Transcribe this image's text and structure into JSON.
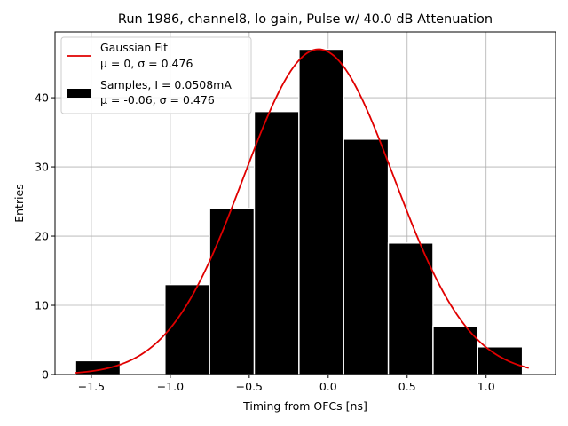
{
  "colors": {
    "background": "#ffffff",
    "bar_fill": "#000000",
    "bar_edge": "#ffffff",
    "fit_line": "#e00000",
    "grid": "#b0b0b0",
    "axis": "#000000"
  },
  "chart_data": {
    "type": "bar",
    "title": "Run 1986, channel8, lo gain, Pulse w/ 40.0 dB Attenuation",
    "xlabel": "Timing from OFCs [ns]",
    "ylabel": "Entries",
    "xlim": [
      -1.73,
      1.44
    ],
    "ylim": [
      0,
      49.5
    ],
    "grid": true,
    "xticks": [
      {
        "value": -1.5,
        "label": "−1.5"
      },
      {
        "value": -1.0,
        "label": "−1.0"
      },
      {
        "value": -0.5,
        "label": "−0.5"
      },
      {
        "value": 0.0,
        "label": "0.0"
      },
      {
        "value": 0.5,
        "label": "0.5"
      },
      {
        "value": 1.0,
        "label": "1.0"
      }
    ],
    "yticks": [
      {
        "value": 0,
        "label": "0"
      },
      {
        "value": 10,
        "label": "10"
      },
      {
        "value": 20,
        "label": "20"
      },
      {
        "value": 30,
        "label": "30"
      },
      {
        "value": 40,
        "label": "40"
      }
    ],
    "bins": [
      {
        "x0": -1.6,
        "x1": -1.317,
        "count": 2
      },
      {
        "x0": -1.317,
        "x1": -1.034,
        "count": 0
      },
      {
        "x0": -1.034,
        "x1": -0.751,
        "count": 13
      },
      {
        "x0": -0.751,
        "x1": -0.468,
        "count": 24
      },
      {
        "x0": -0.468,
        "x1": -0.185,
        "count": 38
      },
      {
        "x0": -0.185,
        "x1": 0.098,
        "count": 47
      },
      {
        "x0": 0.098,
        "x1": 0.381,
        "count": 34
      },
      {
        "x0": 0.381,
        "x1": 0.664,
        "count": 19
      },
      {
        "x0": 0.664,
        "x1": 0.947,
        "count": 7
      },
      {
        "x0": 0.947,
        "x1": 1.23,
        "count": 4
      }
    ],
    "fit": {
      "type": "gaussian",
      "mean": -0.06,
      "sigma": 0.476,
      "amplitude": 47,
      "x_range": [
        -1.6,
        1.27
      ]
    },
    "legend": {
      "placement": "top-left",
      "entries": [
        {
          "kind": "line",
          "lines": [
            "Gaussian Fit",
            "μ = 0, σ = 0.476"
          ]
        },
        {
          "kind": "patch",
          "lines": [
            "Samples, I = 0.0508mA",
            "μ = -0.06, σ = 0.476"
          ]
        }
      ]
    }
  }
}
